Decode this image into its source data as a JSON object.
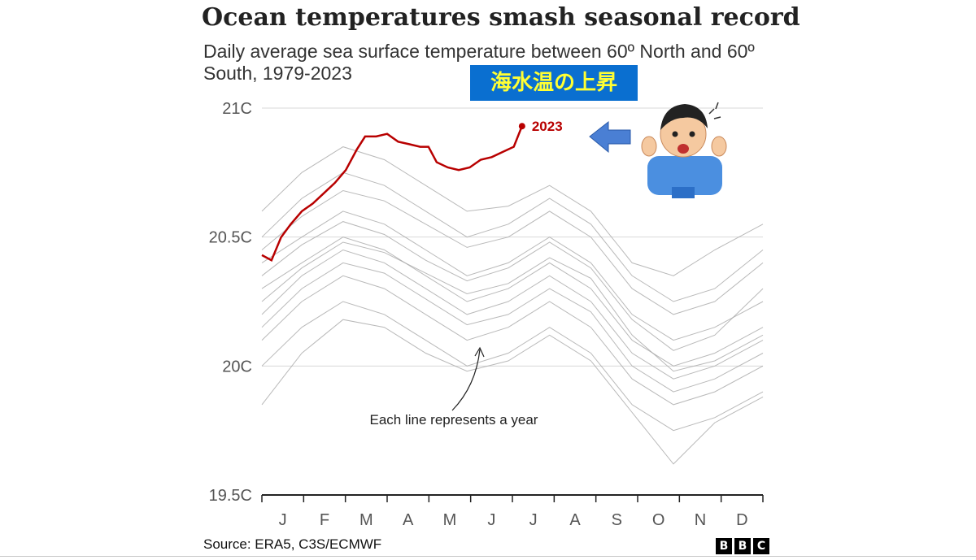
{
  "title": "Ocean temperatures smash seasonal record",
  "subtitle": "Daily average sea surface temperature between 60º North and 60º South, 1979-2023",
  "annotation_jp": "海水温の上昇",
  "source": "Source: ERA5, C3S/ECMWF",
  "logo_letters": [
    "B",
    "B",
    "C"
  ],
  "colors": {
    "highlight": "#b80000",
    "background_years": "#a8a8a8",
    "gridline": "#d8d8d8",
    "arrow": "#4a7fd4",
    "label_bg": "#0a6fd0",
    "label_text": "#ffff33"
  },
  "chart_data": {
    "type": "line",
    "title": "Ocean temperatures smash seasonal record",
    "ylim": [
      19.5,
      21.0
    ],
    "y_ticks": [
      {
        "value": 21.0,
        "label": "21C"
      },
      {
        "value": 20.5,
        "label": "20.5C"
      },
      {
        "value": 20.0,
        "label": "20C"
      },
      {
        "value": 19.5,
        "label": "19.5C"
      }
    ],
    "x_ticks": [
      "J",
      "F",
      "M",
      "A",
      "M",
      "J",
      "J",
      "A",
      "S",
      "O",
      "N",
      "D"
    ],
    "grid": true,
    "annotations": [
      {
        "text": "Each line represents a year"
      },
      {
        "text": "2023"
      }
    ],
    "highlight_series": {
      "name": "2023",
      "points": [
        [
          1,
          20.43
        ],
        [
          8,
          20.41
        ],
        [
          15,
          20.5
        ],
        [
          22,
          20.55
        ],
        [
          30,
          20.6
        ],
        [
          38,
          20.63
        ],
        [
          46,
          20.67
        ],
        [
          54,
          20.71
        ],
        [
          62,
          20.76
        ],
        [
          70,
          20.84
        ],
        [
          76,
          20.89
        ],
        [
          84,
          20.89
        ],
        [
          92,
          20.9
        ],
        [
          100,
          20.87
        ],
        [
          108,
          20.86
        ],
        [
          116,
          20.85
        ],
        [
          122,
          20.85
        ],
        [
          128,
          20.79
        ],
        [
          136,
          20.77
        ],
        [
          144,
          20.76
        ],
        [
          152,
          20.77
        ],
        [
          160,
          20.8
        ],
        [
          168,
          20.81
        ],
        [
          176,
          20.83
        ],
        [
          184,
          20.85
        ],
        [
          190,
          20.93
        ]
      ]
    },
    "background_series": [
      {
        "points": [
          [
            1,
            20.2
          ],
          [
            30,
            20.35
          ],
          [
            60,
            20.45
          ],
          [
            90,
            20.4
          ],
          [
            120,
            20.3
          ],
          [
            150,
            20.2
          ],
          [
            180,
            20.25
          ],
          [
            210,
            20.35
          ],
          [
            240,
            20.25
          ],
          [
            270,
            20.05
          ],
          [
            300,
            19.95
          ],
          [
            330,
            20.0
          ],
          [
            365,
            20.1
          ]
        ]
      },
      {
        "points": [
          [
            1,
            20.3
          ],
          [
            30,
            20.4
          ],
          [
            60,
            20.5
          ],
          [
            90,
            20.45
          ],
          [
            120,
            20.35
          ],
          [
            150,
            20.25
          ],
          [
            180,
            20.3
          ],
          [
            210,
            20.4
          ],
          [
            240,
            20.3
          ],
          [
            270,
            20.1
          ],
          [
            300,
            20.0
          ],
          [
            330,
            20.05
          ],
          [
            365,
            20.15
          ]
        ]
      },
      {
        "points": [
          [
            1,
            20.1
          ],
          [
            30,
            20.25
          ],
          [
            60,
            20.35
          ],
          [
            90,
            20.3
          ],
          [
            120,
            20.2
          ],
          [
            150,
            20.1
          ],
          [
            180,
            20.15
          ],
          [
            210,
            20.25
          ],
          [
            240,
            20.15
          ],
          [
            270,
            19.95
          ],
          [
            300,
            19.85
          ],
          [
            330,
            19.9
          ],
          [
            365,
            20.0
          ]
        ]
      },
      {
        "points": [
          [
            1,
            20.4
          ],
          [
            30,
            20.5
          ],
          [
            60,
            20.6
          ],
          [
            90,
            20.55
          ],
          [
            120,
            20.45
          ],
          [
            150,
            20.35
          ],
          [
            180,
            20.4
          ],
          [
            210,
            20.5
          ],
          [
            240,
            20.4
          ],
          [
            270,
            20.2
          ],
          [
            300,
            20.1
          ],
          [
            330,
            20.15
          ],
          [
            365,
            20.25
          ]
        ]
      },
      {
        "points": [
          [
            1,
            20.5
          ],
          [
            30,
            20.65
          ],
          [
            60,
            20.75
          ],
          [
            90,
            20.7
          ],
          [
            120,
            20.6
          ],
          [
            150,
            20.5
          ],
          [
            180,
            20.55
          ],
          [
            210,
            20.65
          ],
          [
            240,
            20.55
          ],
          [
            270,
            20.35
          ],
          [
            300,
            20.25
          ],
          [
            330,
            20.3
          ],
          [
            365,
            20.45
          ]
        ]
      },
      {
        "points": [
          [
            1,
            20.0
          ],
          [
            30,
            20.15
          ],
          [
            60,
            20.25
          ],
          [
            90,
            20.2
          ],
          [
            120,
            20.1
          ],
          [
            150,
            20.0
          ],
          [
            180,
            20.05
          ],
          [
            210,
            20.15
          ],
          [
            240,
            20.05
          ],
          [
            270,
            19.85
          ],
          [
            300,
            19.75
          ],
          [
            330,
            19.8
          ],
          [
            365,
            19.9
          ]
        ]
      },
      {
        "points": [
          [
            1,
            20.6
          ],
          [
            30,
            20.75
          ],
          [
            60,
            20.85
          ],
          [
            90,
            20.8
          ],
          [
            120,
            20.7
          ],
          [
            150,
            20.6
          ],
          [
            180,
            20.62
          ],
          [
            210,
            20.7
          ],
          [
            240,
            20.6
          ],
          [
            270,
            20.4
          ],
          [
            300,
            20.35
          ],
          [
            330,
            20.45
          ],
          [
            365,
            20.55
          ]
        ]
      },
      {
        "points": [
          [
            1,
            20.25
          ],
          [
            30,
            20.38
          ],
          [
            60,
            20.48
          ],
          [
            90,
            20.44
          ],
          [
            120,
            20.36
          ],
          [
            150,
            20.28
          ],
          [
            180,
            20.32
          ],
          [
            210,
            20.42
          ],
          [
            240,
            20.34
          ],
          [
            270,
            20.12
          ],
          [
            300,
            19.98
          ],
          [
            330,
            20.02
          ],
          [
            365,
            20.12
          ]
        ]
      },
      {
        "points": [
          [
            1,
            19.85
          ],
          [
            30,
            20.05
          ],
          [
            60,
            20.18
          ],
          [
            90,
            20.15
          ],
          [
            120,
            20.05
          ],
          [
            150,
            19.98
          ],
          [
            180,
            20.02
          ],
          [
            210,
            20.12
          ],
          [
            240,
            20.02
          ],
          [
            270,
            19.82
          ],
          [
            300,
            19.62
          ],
          [
            330,
            19.78
          ],
          [
            365,
            19.88
          ]
        ]
      },
      {
        "points": [
          [
            1,
            20.35
          ],
          [
            30,
            20.47
          ],
          [
            60,
            20.56
          ],
          [
            90,
            20.51
          ],
          [
            120,
            20.41
          ],
          [
            150,
            20.33
          ],
          [
            180,
            20.38
          ],
          [
            210,
            20.48
          ],
          [
            240,
            20.38
          ],
          [
            270,
            20.18
          ],
          [
            300,
            20.06
          ],
          [
            330,
            20.12
          ],
          [
            365,
            20.3
          ]
        ]
      },
      {
        "points": [
          [
            1,
            20.15
          ],
          [
            30,
            20.3
          ],
          [
            60,
            20.4
          ],
          [
            90,
            20.36
          ],
          [
            120,
            20.26
          ],
          [
            150,
            20.16
          ],
          [
            180,
            20.2
          ],
          [
            210,
            20.3
          ],
          [
            240,
            20.21
          ],
          [
            270,
            20.0
          ],
          [
            300,
            19.9
          ],
          [
            330,
            19.95
          ],
          [
            365,
            20.05
          ]
        ]
      },
      {
        "points": [
          [
            1,
            20.45
          ],
          [
            30,
            20.58
          ],
          [
            60,
            20.68
          ],
          [
            90,
            20.64
          ],
          [
            120,
            20.55
          ],
          [
            150,
            20.46
          ],
          [
            180,
            20.5
          ],
          [
            210,
            20.6
          ],
          [
            240,
            20.5
          ],
          [
            270,
            20.3
          ],
          [
            300,
            20.2
          ],
          [
            330,
            20.25
          ],
          [
            365,
            20.4
          ]
        ]
      }
    ]
  }
}
